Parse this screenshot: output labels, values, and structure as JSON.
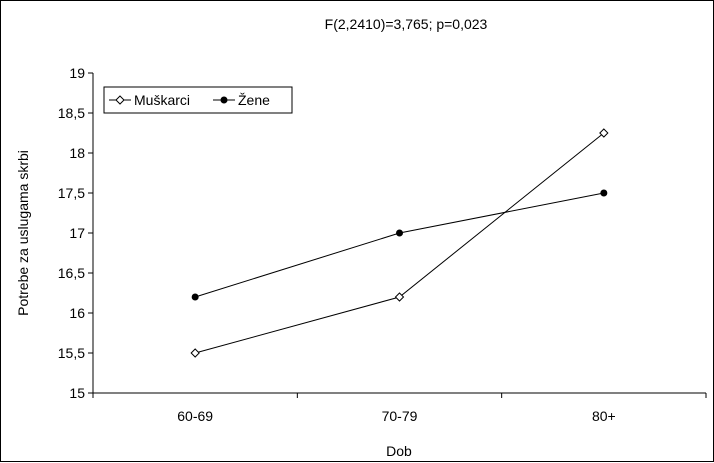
{
  "chart_data": {
    "type": "line",
    "title": "F(2,2410)=3,765; p=0,023",
    "xlabel": "Dob",
    "ylabel": "Potrebe za uslugama skrbi",
    "categories": [
      "60-69",
      "70-79",
      "80+"
    ],
    "ylim": [
      15,
      19
    ],
    "yticks": [
      15,
      15.5,
      16,
      16.5,
      17,
      17.5,
      18,
      18.5,
      19
    ],
    "ytick_labels": [
      "15",
      "15,5",
      "16",
      "16,5",
      "17",
      "17,5",
      "18",
      "18,5",
      "19"
    ],
    "grid": false,
    "legend_position": "top-left",
    "series": [
      {
        "name": "Muškarci",
        "marker": "diamond-open",
        "color": "#000000",
        "values": [
          15.5,
          16.2,
          18.25
        ]
      },
      {
        "name": "Žene",
        "marker": "circle-filled",
        "color": "#000000",
        "values": [
          16.2,
          17.0,
          17.5
        ]
      }
    ]
  }
}
